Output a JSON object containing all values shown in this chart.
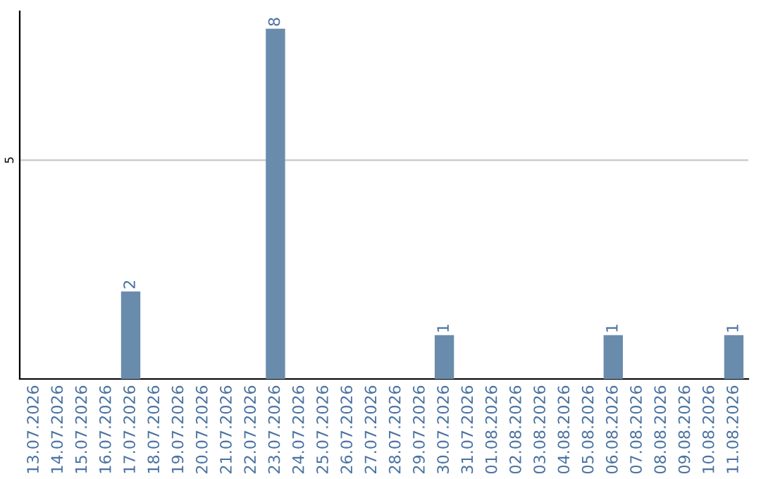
{
  "chart_data": {
    "type": "bar",
    "categories": [
      "13.07.2026",
      "14.07.2026",
      "15.07.2026",
      "16.07.2026",
      "17.07.2026",
      "18.07.2026",
      "19.07.2026",
      "20.07.2026",
      "21.07.2026",
      "22.07.2026",
      "23.07.2026",
      "24.07.2026",
      "25.07.2026",
      "26.07.2026",
      "27.07.2026",
      "28.07.2026",
      "29.07.2026",
      "30.07.2026",
      "31.07.2026",
      "01.08.2026",
      "02.08.2026",
      "03.08.2026",
      "04.08.2026",
      "05.08.2026",
      "06.08.2026",
      "07.08.2026",
      "08.08.2026",
      "09.08.2026",
      "10.08.2026",
      "11.08.2026"
    ],
    "values": [
      0,
      0,
      0,
      0,
      2,
      0,
      0,
      0,
      0,
      0,
      8,
      0,
      0,
      0,
      0,
      0,
      0,
      1,
      0,
      0,
      0,
      0,
      0,
      0,
      1,
      0,
      0,
      0,
      0,
      1
    ],
    "value_labels": [
      null,
      null,
      null,
      null,
      "2",
      null,
      null,
      null,
      null,
      null,
      "8",
      null,
      null,
      null,
      null,
      null,
      null,
      "1",
      null,
      null,
      null,
      null,
      null,
      null,
      "1",
      null,
      null,
      null,
      null,
      "1"
    ],
    "color": "#6a8cac",
    "ylim": [
      0,
      8.4
    ],
    "yticks": [
      5
    ],
    "grid": "y"
  }
}
